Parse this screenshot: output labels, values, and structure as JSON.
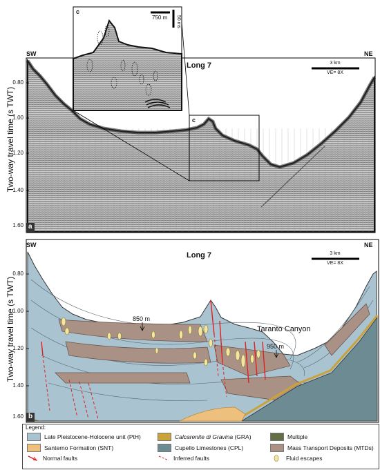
{
  "panel_a": {
    "corner_left": "SW",
    "corner_right": "NE",
    "title": "Long 7",
    "scale_length": "3 km",
    "vertical_exaggeration": "VE= 8X",
    "panel_letter": "a",
    "box_label": "c",
    "y_axis_title": "Two-way travel time (s TWT)",
    "y_ticks": [
      "0.80",
      "1.00",
      "1.20",
      "1.40",
      "1.60"
    ],
    "inset": {
      "letter": "c",
      "h_scale": "750 m",
      "v_scale": "50 ms"
    }
  },
  "panel_b": {
    "corner_left": "SW",
    "corner_right": "NE",
    "title": "Long 7",
    "scale_length": "3 km",
    "vertical_exaggeration": "VE= 8X",
    "panel_letter": "b",
    "y_axis_title": "Two-way travel time (s TWT)",
    "y_ticks": [
      "0.80",
      "1.00",
      "1.20",
      "1.40",
      "1.60"
    ],
    "depth_label_1": "850 m",
    "depth_label_2": "950 m",
    "canyon_label": "Taranto Canyon"
  },
  "legend": {
    "title": "Legend:",
    "items": [
      {
        "label": "Late Pleistocene-Holocene unit (PtH)",
        "color": "#a9c3d0",
        "kind": "swatch"
      },
      {
        "label": "Santerno Formation (SNT)",
        "color": "#eec07e",
        "kind": "swatch"
      },
      {
        "label": "Normal faults",
        "color": "#e02020",
        "kind": "normal-fault"
      },
      {
        "label": "Calcarenite di Gravina",
        "label_suffix": " (GRA)",
        "color": "#c9a23a",
        "kind": "swatch"
      },
      {
        "label": "Cupello Limestones (CPL)",
        "color": "#6d8b93",
        "kind": "swatch"
      },
      {
        "label": "Inferred faults",
        "color": "#e02020",
        "kind": "inferred-fault"
      },
      {
        "label": "Multiple",
        "color": "#636e46",
        "kind": "swatch"
      },
      {
        "label": "Mass Transport Deposits (MTDs)",
        "color": "#a99285",
        "kind": "swatch"
      },
      {
        "label": "Fluid escapes",
        "color": "#f2e6a0",
        "kind": "fluid"
      }
    ]
  }
}
